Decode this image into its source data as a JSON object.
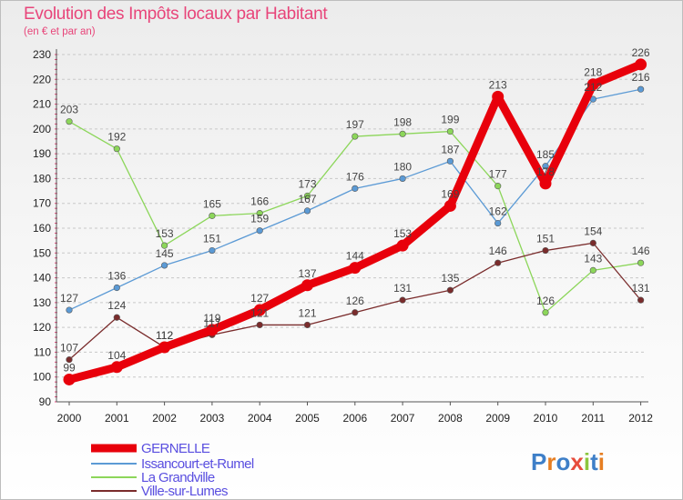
{
  "title": "Evolution des Impôts locaux par Habitant",
  "subtitle": "(en € et par an)",
  "logo": {
    "text": "Proxiti",
    "letters": [
      {
        "ch": "P",
        "color": "#3e7fc8"
      },
      {
        "ch": "r",
        "color": "#e67e22"
      },
      {
        "ch": "o",
        "color": "#3e7fc8"
      },
      {
        "ch": "x",
        "color": "#e74c3c"
      },
      {
        "ch": "i",
        "color": "#8cc63f"
      },
      {
        "ch": "t",
        "color": "#3e7fc8"
      },
      {
        "ch": "i",
        "color": "#e67e22"
      }
    ]
  },
  "chart_data": {
    "type": "line",
    "title": "Evolution des Impôts locaux par Habitant",
    "subtitle": "(en € et par an)",
    "xlabel": "",
    "ylabel": "",
    "x": [
      "2000",
      "2001",
      "2002",
      "2003",
      "2004",
      "2005",
      "2006",
      "2007",
      "2008",
      "2009",
      "2010",
      "2011",
      "2012"
    ],
    "ylim": [
      90,
      230
    ],
    "yticks": [
      90,
      100,
      110,
      120,
      130,
      140,
      150,
      160,
      170,
      180,
      190,
      200,
      210,
      220,
      230
    ],
    "grid": "horizontal dashed",
    "legend_position": "bottom-left",
    "series": [
      {
        "name": "GERNELLE",
        "color": "#e8000b",
        "thick": true,
        "values": [
          99,
          104,
          112,
          119,
          127,
          137,
          144,
          153,
          169,
          213,
          178,
          218,
          226
        ]
      },
      {
        "name": "Issancourt-et-Rumel",
        "color": "#5b9ad5",
        "thick": false,
        "values": [
          127,
          136,
          145,
          151,
          159,
          167,
          176,
          180,
          187,
          162,
          185,
          212,
          216
        ]
      },
      {
        "name": "La Grandville",
        "color": "#8cd65a",
        "thick": false,
        "values": [
          203,
          192,
          153,
          165,
          166,
          173,
          197,
          198,
          199,
          177,
          126,
          143,
          146
        ]
      },
      {
        "name": "Ville-sur-Lumes",
        "color": "#7a2c2c",
        "thick": false,
        "values": [
          107,
          124,
          112,
          117,
          121,
          121,
          126,
          131,
          135,
          146,
          151,
          154,
          131
        ]
      }
    ]
  }
}
